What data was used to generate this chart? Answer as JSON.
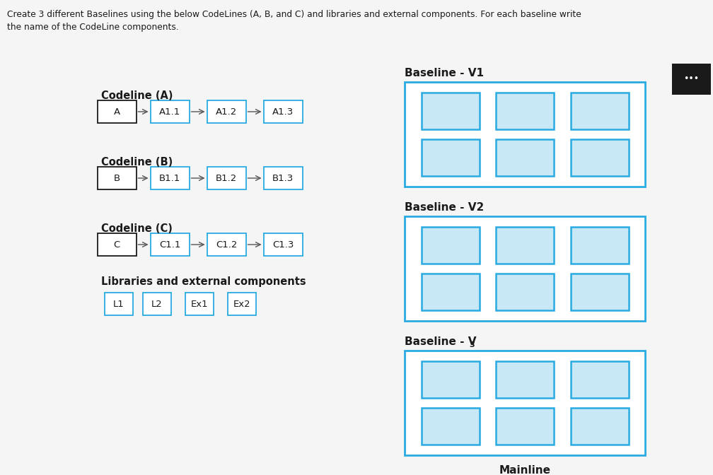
{
  "bg_color": "#f5f5f5",
  "white": "#ffffff",
  "light_blue_fill": "#c8e8f5",
  "cyan_border": "#29abe2",
  "text_color": "#1a1a1a",
  "header_line1": "Create 3 different Baselines using the below CodeLines (A, B, and C) and libraries and external components. For each baseline write",
  "header_line2": "the name of the CodeLine components.",
  "codeline_A_label": "Codeline (A)",
  "codeline_B_label": "Codeline (B)",
  "codeline_C_label": "Codeline (C)",
  "libs_label": "Libraries and external components",
  "baseline_V1_label": "Baseline - V1",
  "baseline_V2_label": "Baseline - V2",
  "baseline_V3_base": "Baseline - V",
  "baseline_V3_sub": "3",
  "mainline_label": "Mainline",
  "codeline_A_nodes": [
    "A",
    "A1.1",
    "A1.2",
    "A1.3"
  ],
  "codeline_B_nodes": [
    "B",
    "B1.1",
    "B1.2",
    "B1.3"
  ],
  "codeline_C_nodes": [
    "C",
    "C1.1",
    "C1.2",
    "C1.3"
  ],
  "libs_nodes": [
    "L1",
    "L2",
    "Ex1",
    "Ex2"
  ],
  "figsize": [
    10.08,
    6.72
  ],
  "dpi": 100
}
